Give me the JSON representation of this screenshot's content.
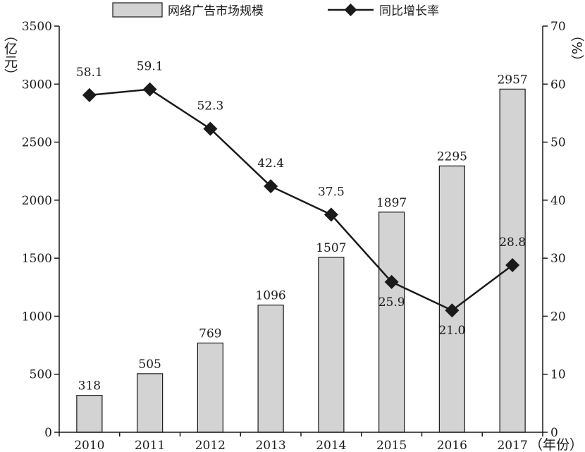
{
  "chart_data": {
    "type": "bar",
    "categories": [
      "2010",
      "2011",
      "2012",
      "2013",
      "2014",
      "2015",
      "2016",
      "2017"
    ],
    "series": [
      {
        "name": "网络广告市场规模",
        "type": "bar",
        "axis": "left",
        "values": [
          318,
          505,
          769,
          1096,
          1507,
          1897,
          2295,
          2957
        ],
        "labels": [
          "318",
          "505",
          "769",
          "1096",
          "1507",
          "1897",
          "2295",
          "2957"
        ],
        "color": "#d3d3d3"
      },
      {
        "name": "同比增长率",
        "type": "line",
        "axis": "right",
        "values": [
          58.1,
          59.1,
          52.3,
          42.4,
          37.5,
          25.9,
          21.0,
          28.8
        ],
        "labels": [
          "58.1",
          "59.1",
          "52.3",
          "42.4",
          "37.5",
          "25.9",
          "21.0",
          "28.8"
        ],
        "color": "#1a1a1a",
        "marker": "diamond"
      }
    ],
    "y_left": {
      "unit": "（亿元）",
      "ylim": [
        0,
        3500
      ],
      "ticks": [
        "0",
        "500",
        "1000",
        "1500",
        "2000",
        "2500",
        "3000",
        "3500"
      ]
    },
    "y_right": {
      "unit": "（%）",
      "ylim": [
        0,
        70
      ],
      "ticks": [
        "0",
        "10",
        "20",
        "30",
        "40",
        "50",
        "60",
        "70"
      ]
    },
    "x_unit": "（年份）",
    "legend_position": "top-center",
    "grid": false
  }
}
